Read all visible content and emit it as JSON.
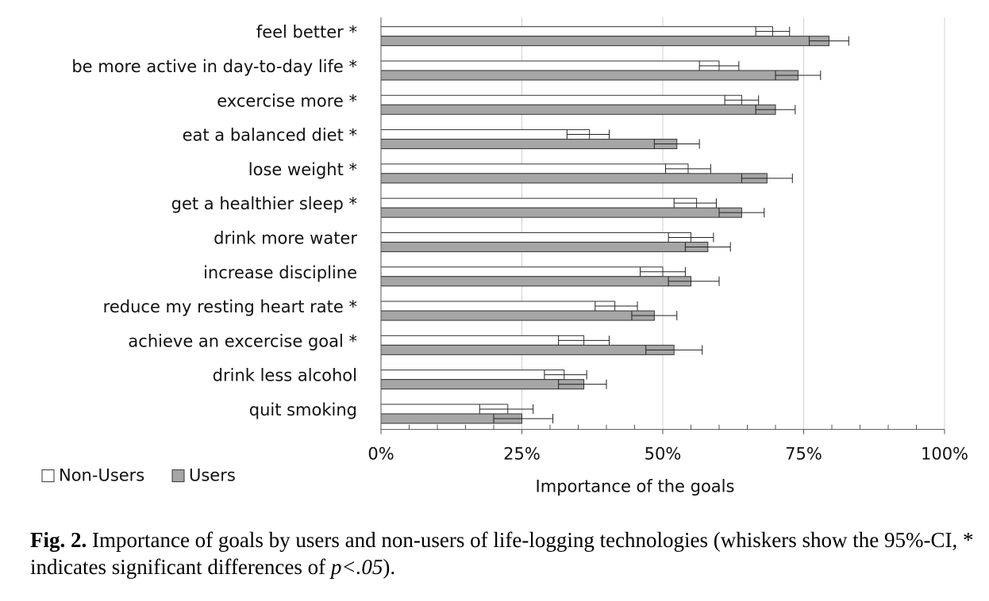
{
  "chart_data": {
    "type": "bar",
    "orientation": "horizontal",
    "categories": [
      "feel better *",
      "be more active in day-to-day life *",
      "excercise more *",
      "eat a balanced diet *",
      "lose weight *",
      "get a healthier sleep *",
      "drink more water",
      "increase discipline",
      "reduce my resting heart rate *",
      "achieve an excercise goal *",
      "drink less alcohol",
      "quit smoking"
    ],
    "series": [
      {
        "name": "Non-Users",
        "color": "#ffffff",
        "values": [
          69.5,
          60.0,
          64.0,
          37.0,
          54.5,
          56.0,
          55.0,
          50.0,
          41.5,
          36.0,
          32.5,
          22.5
        ],
        "ci_low": [
          66.5,
          56.5,
          61.0,
          33.0,
          50.5,
          52.0,
          51.0,
          46.0,
          38.0,
          31.5,
          29.0,
          17.5
        ],
        "ci_high": [
          72.5,
          63.5,
          67.0,
          40.5,
          58.5,
          59.5,
          59.0,
          54.0,
          45.5,
          40.5,
          36.5,
          27.0
        ]
      },
      {
        "name": "Users",
        "color": "#a6a6a6",
        "values": [
          79.5,
          74.0,
          70.0,
          52.5,
          68.5,
          64.0,
          58.0,
          55.0,
          48.5,
          52.0,
          36.0,
          25.0
        ],
        "ci_low": [
          76.0,
          70.0,
          66.5,
          48.5,
          64.0,
          60.0,
          54.0,
          51.0,
          44.5,
          47.0,
          31.5,
          20.0
        ],
        "ci_high": [
          83.0,
          78.0,
          73.5,
          56.5,
          73.0,
          68.0,
          62.0,
          60.0,
          52.5,
          57.0,
          40.0,
          30.5
        ]
      }
    ],
    "xlabel": "Importance of the goals",
    "xlim": [
      0,
      100
    ],
    "x_ticks": [
      "0%",
      "25%",
      "50%",
      "75%",
      "100%"
    ],
    "x_tick_values": [
      0,
      25,
      50,
      75,
      100
    ],
    "grid": "vertical",
    "legend": "bottom-left"
  },
  "caption": {
    "lead": "Fig. 2.",
    "text_before_p": " Importance of goals by users and non-users of life-logging technologies (whiskers show the 95%-CI, * indicates significant differences of ",
    "p_value": "p<.05",
    "text_after_p": ")."
  }
}
